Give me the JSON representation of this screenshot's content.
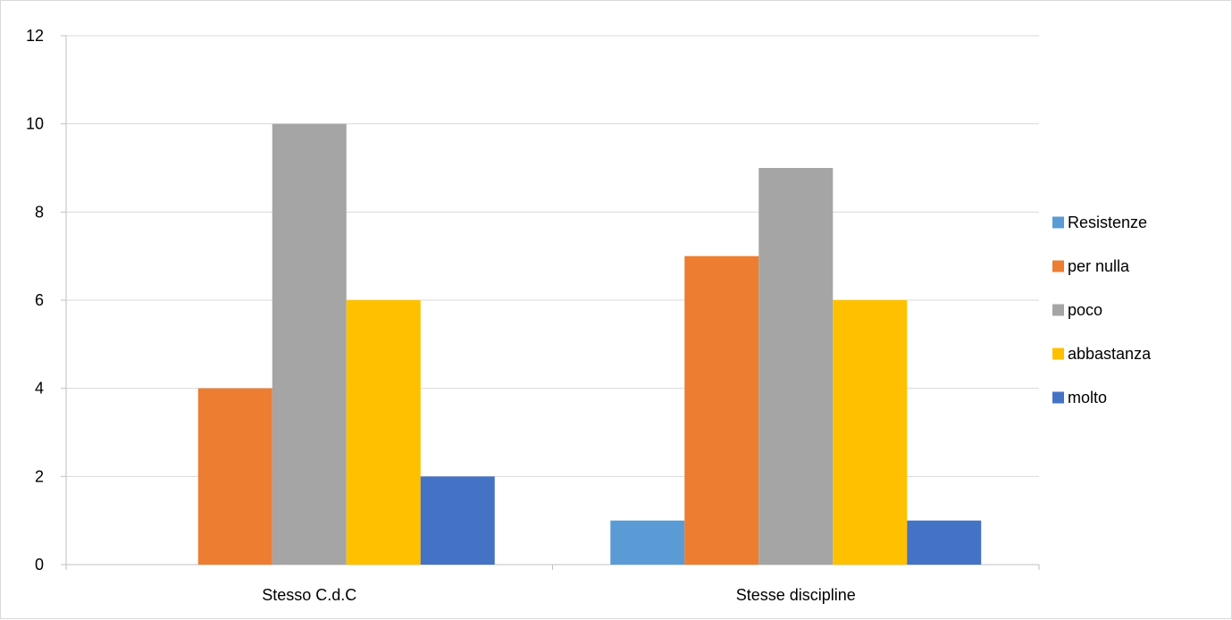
{
  "chart_data": {
    "type": "bar",
    "categories": [
      "Stesso C.d.C",
      "Stesse discipline"
    ],
    "series": [
      {
        "name": "Resistenze",
        "color": "#5b9bd5",
        "values": [
          0,
          1
        ]
      },
      {
        "name": "per nulla",
        "color": "#ed7d31",
        "values": [
          4,
          7
        ]
      },
      {
        "name": "poco",
        "color": "#a5a5a5",
        "values": [
          10,
          9
        ]
      },
      {
        "name": "abbastanza",
        "color": "#ffc000",
        "values": [
          6,
          6
        ]
      },
      {
        "name": "molto",
        "color": "#4472c4",
        "values": [
          2,
          1
        ]
      }
    ],
    "ylim": [
      0,
      12
    ],
    "yticks": [
      0,
      2,
      4,
      6,
      8,
      10,
      12
    ],
    "grid": true,
    "legend_position": "right"
  }
}
